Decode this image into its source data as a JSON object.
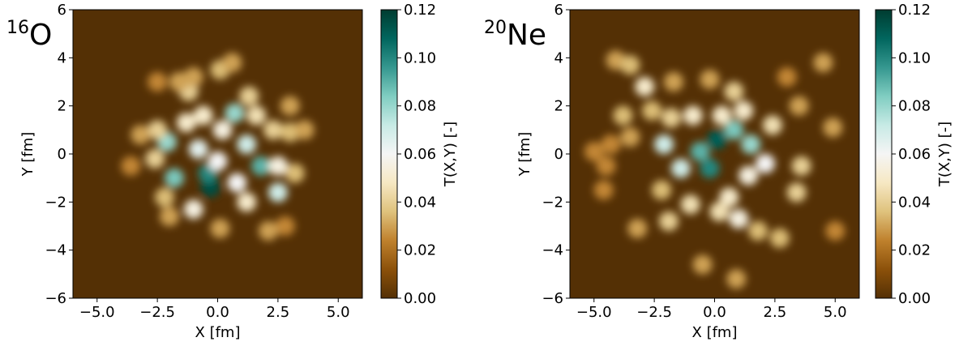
{
  "chart_data": [
    {
      "type": "heatmap",
      "title_mass": "16",
      "title_symbol": "O",
      "xlabel": "X [fm]",
      "ylabel": "Y [fm]",
      "colorbar_label": "T(X,Y) [-]",
      "xlim": [
        -6,
        6
      ],
      "ylim": [
        -6,
        6
      ],
      "clim": [
        0,
        0.12
      ],
      "xticks": [
        {
          "value": -5,
          "label": "−5.0"
        },
        {
          "value": -2.5,
          "label": "−2.5"
        },
        {
          "value": 0,
          "label": "0.0"
        },
        {
          "value": 2.5,
          "label": "2.5"
        },
        {
          "value": 5,
          "label": "5.0"
        }
      ],
      "yticks": [
        {
          "value": -6,
          "label": "−6"
        },
        {
          "value": -4,
          "label": "−4"
        },
        {
          "value": -2,
          "label": "−2"
        },
        0,
        2,
        4,
        6
      ],
      "cticks": [
        {
          "value": 0,
          "label": "0.00"
        },
        {
          "value": 0.02,
          "label": "0.02"
        },
        {
          "value": 0.04,
          "label": "0.04"
        },
        {
          "value": 0.06,
          "label": "0.06"
        },
        {
          "value": 0.08,
          "label": "0.08"
        },
        {
          "value": 0.1,
          "label": "0.10"
        },
        {
          "value": 0.12,
          "label": "0.12"
        }
      ],
      "colors": [
        "#543005",
        "#8c510a",
        "#bf812d",
        "#dfc27d",
        "#f6e8c3",
        "#f5f5f5",
        "#c7eae5",
        "#80cdc1",
        "#35978f",
        "#01665e",
        "#003c30"
      ],
      "x": [
        -0.3,
        -0.4,
        0.7,
        1.8,
        -2.1,
        -1.8,
        2.5,
        1.2,
        -0.8,
        0,
        -1.3,
        0.2,
        -1.0,
        0.8,
        2.5,
        1.6,
        -2.5,
        -3.2,
        -2.6,
        -2.2,
        -1.2,
        0.1,
        0.6,
        -1.6,
        -2.5,
        2.3,
        3.0,
        3.6,
        3.2,
        2.8,
        2.1,
        0.1,
        -2.0,
        -3.6,
        1.2,
        -0.6,
        1.3,
        3.0,
        -1.0
      ],
      "y": [
        -1.4,
        -0.8,
        1.7,
        -0.5,
        0.5,
        -1.0,
        -1.6,
        0.4,
        0.2,
        -0.3,
        1.3,
        1.0,
        -2.3,
        -1.2,
        -0.5,
        1.6,
        1.0,
        0.8,
        -0.2,
        -1.8,
        2.6,
        3.5,
        3.8,
        3.0,
        3.0,
        1.0,
        0.9,
        1.0,
        -0.8,
        -3.0,
        -3.2,
        -3.1,
        -2.6,
        -0.5,
        -2.0,
        1.6,
        2.4,
        2.0,
        3.2
      ],
      "values": [
        0.115,
        0.1,
        0.08,
        0.09,
        0.08,
        0.085,
        0.07,
        0.07,
        0.065,
        0.06,
        0.05,
        0.055,
        0.055,
        0.06,
        0.055,
        0.045,
        0.04,
        0.03,
        0.04,
        0.035,
        0.04,
        0.035,
        0.03,
        0.03,
        0.025,
        0.04,
        0.035,
        0.03,
        0.035,
        0.025,
        0.03,
        0.03,
        0.03,
        0.025,
        0.05,
        0.05,
        0.04,
        0.03,
        0.03
      ]
    },
    {
      "type": "heatmap",
      "title_mass": "20",
      "title_symbol": "Ne",
      "xlabel": "X [fm]",
      "ylabel": "Y [fm]",
      "colorbar_label": "T(X,Y) [-]",
      "xlim": [
        -6,
        6
      ],
      "ylim": [
        -6,
        6
      ],
      "clim": [
        0,
        0.12
      ],
      "xticks": [
        {
          "value": -5,
          "label": "−5.0"
        },
        {
          "value": -2.5,
          "label": "−2.5"
        },
        {
          "value": 0,
          "label": "0.0"
        },
        {
          "value": 2.5,
          "label": "2.5"
        },
        {
          "value": 5,
          "label": "5.0"
        }
      ],
      "yticks": [
        {
          "value": -6,
          "label": "−6"
        },
        {
          "value": -4,
          "label": "−4"
        },
        {
          "value": -2,
          "label": "−2"
        },
        0,
        2,
        4,
        6
      ],
      "cticks": [
        {
          "value": 0,
          "label": "0.00"
        },
        {
          "value": 0.02,
          "label": "0.02"
        },
        {
          "value": 0.04,
          "label": "0.04"
        },
        {
          "value": 0.06,
          "label": "0.06"
        },
        {
          "value": 0.08,
          "label": "0.08"
        },
        {
          "value": 0.1,
          "label": "0.10"
        },
        {
          "value": 0.12,
          "label": "0.12"
        }
      ],
      "colors": [
        "#543005",
        "#8c510a",
        "#bf812d",
        "#dfc27d",
        "#f6e8c3",
        "#f5f5f5",
        "#c7eae5",
        "#80cdc1",
        "#35978f",
        "#01665e",
        "#003c30"
      ],
      "x": [
        0.1,
        -0.6,
        -0.2,
        0.8,
        1.5,
        -1.4,
        -2.1,
        -2.9,
        -0.9,
        0.3,
        1.2,
        2.4,
        2.1,
        1.4,
        0.6,
        1.0,
        0.2,
        -1.0,
        -1.9,
        -2.2,
        -3.5,
        -3.8,
        -4.3,
        -5.0,
        -4.5,
        -4.1,
        -3.5,
        -1.7,
        -0.2,
        0.8,
        3.0,
        3.5,
        4.5,
        4.9,
        3.6,
        3.4,
        2.7,
        1.8,
        -0.5,
        0.9,
        -3.2,
        -4.6,
        5.0,
        -1.8,
        -2.6
      ],
      "y": [
        0.6,
        0.1,
        -0.6,
        1.0,
        0.4,
        -0.6,
        0.4,
        2.8,
        1.6,
        1.6,
        1.8,
        1.2,
        -0.4,
        -0.9,
        -1.8,
        -2.7,
        -2.4,
        -2.1,
        -2.8,
        -1.5,
        0.7,
        1.6,
        0.4,
        0.1,
        -0.5,
        3.9,
        3.7,
        3.0,
        3.1,
        2.6,
        3.2,
        2.0,
        3.8,
        1.1,
        -0.5,
        -1.6,
        -3.5,
        -3.2,
        -4.6,
        -5.2,
        -3.1,
        -1.5,
        -3.2,
        1.5,
        1.8
      ],
      "values": [
        0.11,
        0.09,
        0.1,
        0.085,
        0.08,
        0.07,
        0.07,
        0.05,
        0.05,
        0.05,
        0.05,
        0.045,
        0.06,
        0.055,
        0.05,
        0.055,
        0.045,
        0.045,
        0.04,
        0.035,
        0.03,
        0.035,
        0.025,
        0.025,
        0.025,
        0.03,
        0.035,
        0.03,
        0.03,
        0.04,
        0.025,
        0.03,
        0.03,
        0.03,
        0.04,
        0.04,
        0.035,
        0.035,
        0.03,
        0.03,
        0.03,
        0.025,
        0.025,
        0.04,
        0.035
      ]
    }
  ]
}
